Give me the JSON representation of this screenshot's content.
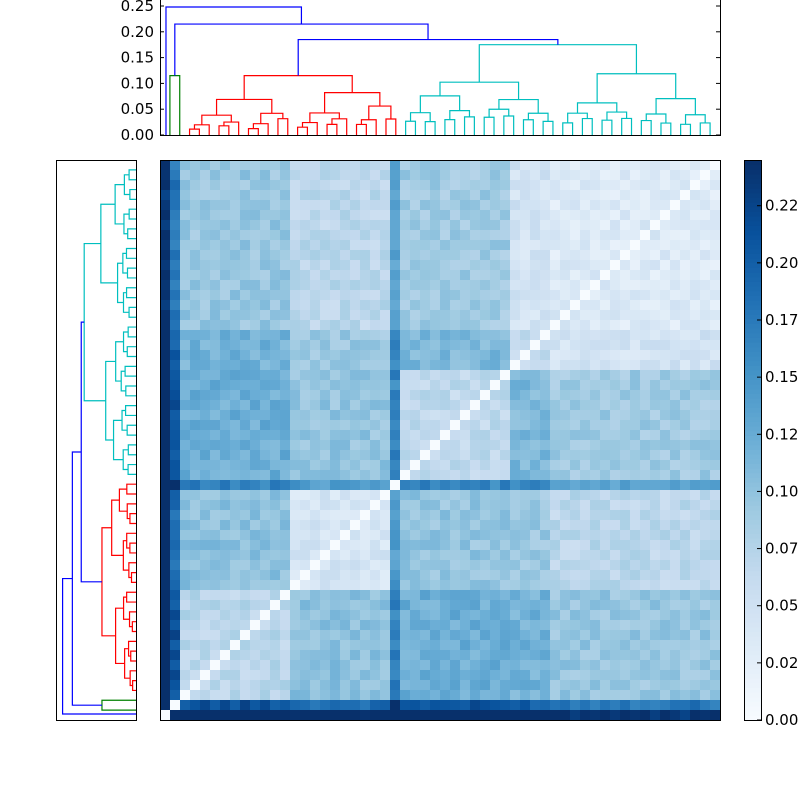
{
  "chart_data": [
    {
      "type": "dendrogram",
      "orientation": "top",
      "ylim": [
        0,
        0.25
      ],
      "yticks": [
        "0.00",
        "0.05",
        "0.10",
        "0.15",
        "0.20",
        "0.25"
      ],
      "leaves": 56,
      "link_colors": {
        "root": "#0000ff",
        "cluster_1": "#ff0000",
        "cluster_2": "#00bfbf",
        "cluster_3": "#008000"
      },
      "root_merge_heights": [
        0.248,
        0.215,
        0.185
      ],
      "cluster_heights": [
        0.115,
        0.175,
        0.115
      ]
    },
    {
      "type": "dendrogram",
      "orientation": "left",
      "leaves": 56,
      "link_colors": {
        "root": "#0000ff",
        "cluster_1": "#ff0000",
        "cluster_2": "#00bfbf",
        "cluster_3": "#008000"
      }
    },
    {
      "type": "heatmap",
      "rows": 56,
      "cols": 56,
      "colormap": "Blues",
      "value_range": [
        0,
        0.24
      ],
      "diagonal": 0,
      "colorbar_ticks": [
        "0.00",
        "0.02",
        "0.05",
        "0.07",
        "0.10",
        "0.12",
        "0.15",
        "0.17",
        "0.20",
        "0.22"
      ]
    }
  ]
}
